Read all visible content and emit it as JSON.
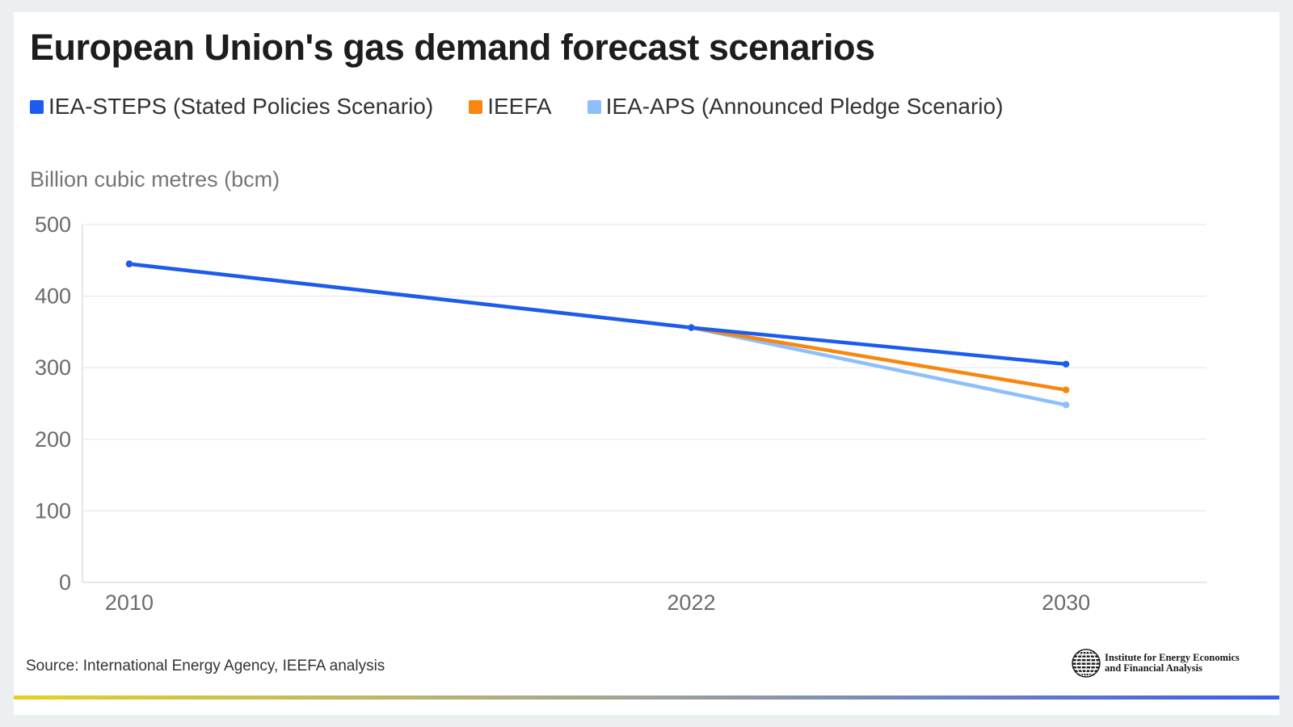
{
  "header": {
    "title": "European Union's gas demand forecast scenarios"
  },
  "chart_data": {
    "type": "line",
    "title": "European Union's gas demand forecast scenarios",
    "ylabel": "Billion cubic metres (bcm)",
    "xlabel": "",
    "x": [
      "2010",
      "2022",
      "2030"
    ],
    "x_numeric": [
      2010,
      2022,
      2030
    ],
    "xlim": [
      2009,
      2033
    ],
    "ylim": [
      0,
      500
    ],
    "yticks": [
      0,
      100,
      200,
      300,
      400,
      500
    ],
    "grid": true,
    "legend_position": "top-left",
    "series": [
      {
        "name": "IEA-STEPS (Stated Policies Scenario)",
        "color": "#1a5cf0",
        "values": [
          445,
          356,
          305
        ]
      },
      {
        "name": "IEEFA",
        "color": "#f7870f",
        "values": [
          445,
          356,
          269
        ]
      },
      {
        "name": "IEA-APS (Announced Pledge Scenario)",
        "color": "#8cbffb",
        "values": [
          445,
          356,
          248
        ]
      }
    ]
  },
  "footer": {
    "source": "Source: International Energy Agency, IEEFA analysis",
    "logo_line1": "Institute for Energy Economics",
    "logo_line2": "and Financial Analysis",
    "logo_icon": "globe-icon",
    "bar_colors": [
      "#e8cf22",
      "#9ea49a",
      "#3a5df0"
    ]
  }
}
